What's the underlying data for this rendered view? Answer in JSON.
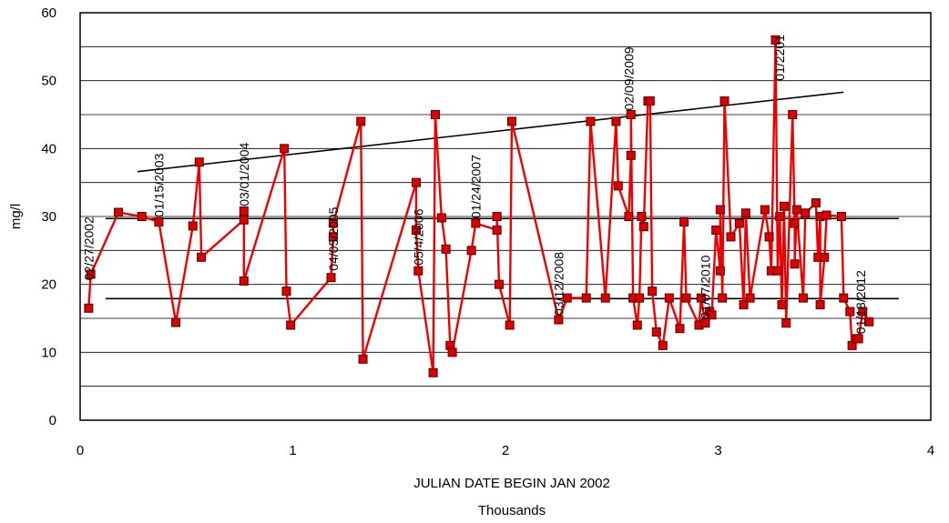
{
  "chart_data": {
    "type": "line",
    "title": "",
    "xlabel": "JULIAN DATE BEGIN JAN 2002",
    "xlabel_units": "Thousands",
    "ylabel": "mg/l",
    "xlim": [
      0,
      4
    ],
    "ylim": [
      0,
      60
    ],
    "x_ticks": [
      0,
      1,
      2,
      3,
      4
    ],
    "y_ticks": [
      0,
      10,
      20,
      30,
      40,
      50,
      60
    ],
    "grid": "horizontal",
    "legend": "none",
    "colors": {
      "series": "#ee0000",
      "marker_fill": "#dd0000",
      "marker_edge": "#550000",
      "line": "#000000",
      "grid": "#000000"
    },
    "series": [
      {
        "x": [
          0.04,
          0.05,
          0.18,
          0.29,
          0.37,
          0.45,
          0.53,
          0.56,
          0.57,
          0.77,
          0.77,
          0.77,
          0.96,
          0.97,
          0.99,
          1.18,
          1.19,
          1.19,
          1.32,
          1.33,
          1.58,
          1.58,
          1.59,
          1.66,
          1.67,
          1.7,
          1.72,
          1.74,
          1.75,
          1.84,
          1.86,
          1.96,
          1.96,
          1.97,
          2.02,
          2.03,
          2.25,
          2.29,
          2.38,
          2.4,
          2.47,
          2.52,
          2.53,
          2.58,
          2.59,
          2.59,
          2.6,
          2.62,
          2.63,
          2.64,
          2.65,
          2.67,
          2.68,
          2.69,
          2.71,
          2.74,
          2.77,
          2.82,
          2.84,
          2.85,
          2.91,
          2.92,
          2.94,
          2.96,
          2.97,
          2.99,
          3.01,
          3.01,
          3.02,
          3.03,
          3.06,
          3.1,
          3.12,
          3.13,
          3.15,
          3.22,
          3.24,
          3.25,
          3.27,
          3.28,
          3.29,
          3.3,
          3.31,
          3.32,
          3.35,
          3.36,
          3.36,
          3.37,
          3.4,
          3.41,
          3.46,
          3.47,
          3.48,
          3.48,
          3.5,
          3.51,
          3.58,
          3.59,
          3.62,
          3.63,
          3.65,
          3.66,
          3.68,
          3.71
        ],
        "y": [
          16.5,
          21.5,
          30.6,
          30.0,
          29.2,
          14.4,
          28.6,
          38.0,
          24.0,
          29.5,
          30.8,
          20.5,
          40.0,
          19.0,
          14.0,
          21.0,
          27.0,
          29.0,
          44.0,
          9.0,
          35.0,
          28.0,
          22.0,
          7.0,
          45.0,
          29.8,
          25.2,
          11.0,
          10.0,
          25.0,
          29.0,
          28.0,
          30.0,
          20.0,
          14.0,
          44.0,
          14.8,
          18.0,
          18.0,
          44.0,
          18.0,
          44.0,
          34.5,
          30.0,
          39.0,
          45.0,
          18.0,
          14.0,
          18.0,
          30.0,
          28.5,
          47.0,
          47.0,
          19.0,
          13.0,
          11.0,
          18.0,
          13.5,
          29.2,
          18.0,
          14.0,
          18.0,
          14.3,
          16.0,
          15.5,
          28.0,
          22.0,
          31.0,
          18.0,
          47.0,
          27.0,
          29.0,
          17.0,
          30.5,
          18.0,
          31.0,
          27.0,
          22.0,
          56.0,
          22.0,
          30.0,
          17.0,
          31.5,
          14.3,
          45.0,
          29.0,
          23.0,
          31.0,
          18.0,
          30.5,
          32.0,
          24.0,
          30.0,
          17.0,
          24.0,
          30.2,
          30.0,
          18.0,
          16.0,
          11.0,
          12.0,
          12.0,
          16.0,
          14.5
        ]
      }
    ],
    "lines": [
      {
        "kind": "trend",
        "x": [
          0.27,
          3.59
        ],
        "y": [
          36.6,
          48.3
        ]
      },
      {
        "kind": "horizontal",
        "x": [
          0.12,
          3.85
        ],
        "y": [
          29.7,
          29.7
        ]
      },
      {
        "kind": "horizontal",
        "x": [
          0.12,
          3.85
        ],
        "y": [
          17.9,
          17.9
        ]
      }
    ],
    "annotations": [
      {
        "text": "02/27/2002",
        "x": 0.04,
        "y": 20.6
      },
      {
        "text": "01/15/2003",
        "x": 0.37,
        "y": 29.9
      },
      {
        "text": "03/01/2004",
        "x": 0.77,
        "y": 31.5
      },
      {
        "text": "04/05/2005",
        "x": 1.19,
        "y": 22.0
      },
      {
        "text": "05/4/2006",
        "x": 1.59,
        "y": 22.8
      },
      {
        "text": "01/24/2007",
        "x": 1.86,
        "y": 29.7
      },
      {
        "text": "03/12/2008",
        "x": 2.25,
        "y": 15.4
      },
      {
        "text": "02/09/2009",
        "x": 2.58,
        "y": 45.6
      },
      {
        "text": "01/07/2010",
        "x": 2.94,
        "y": 14.9
      },
      {
        "text": "01/2201",
        "x": 3.29,
        "y": 50.0
      },
      {
        "text": "01/18/2012",
        "x": 3.67,
        "y": 12.7
      }
    ]
  }
}
